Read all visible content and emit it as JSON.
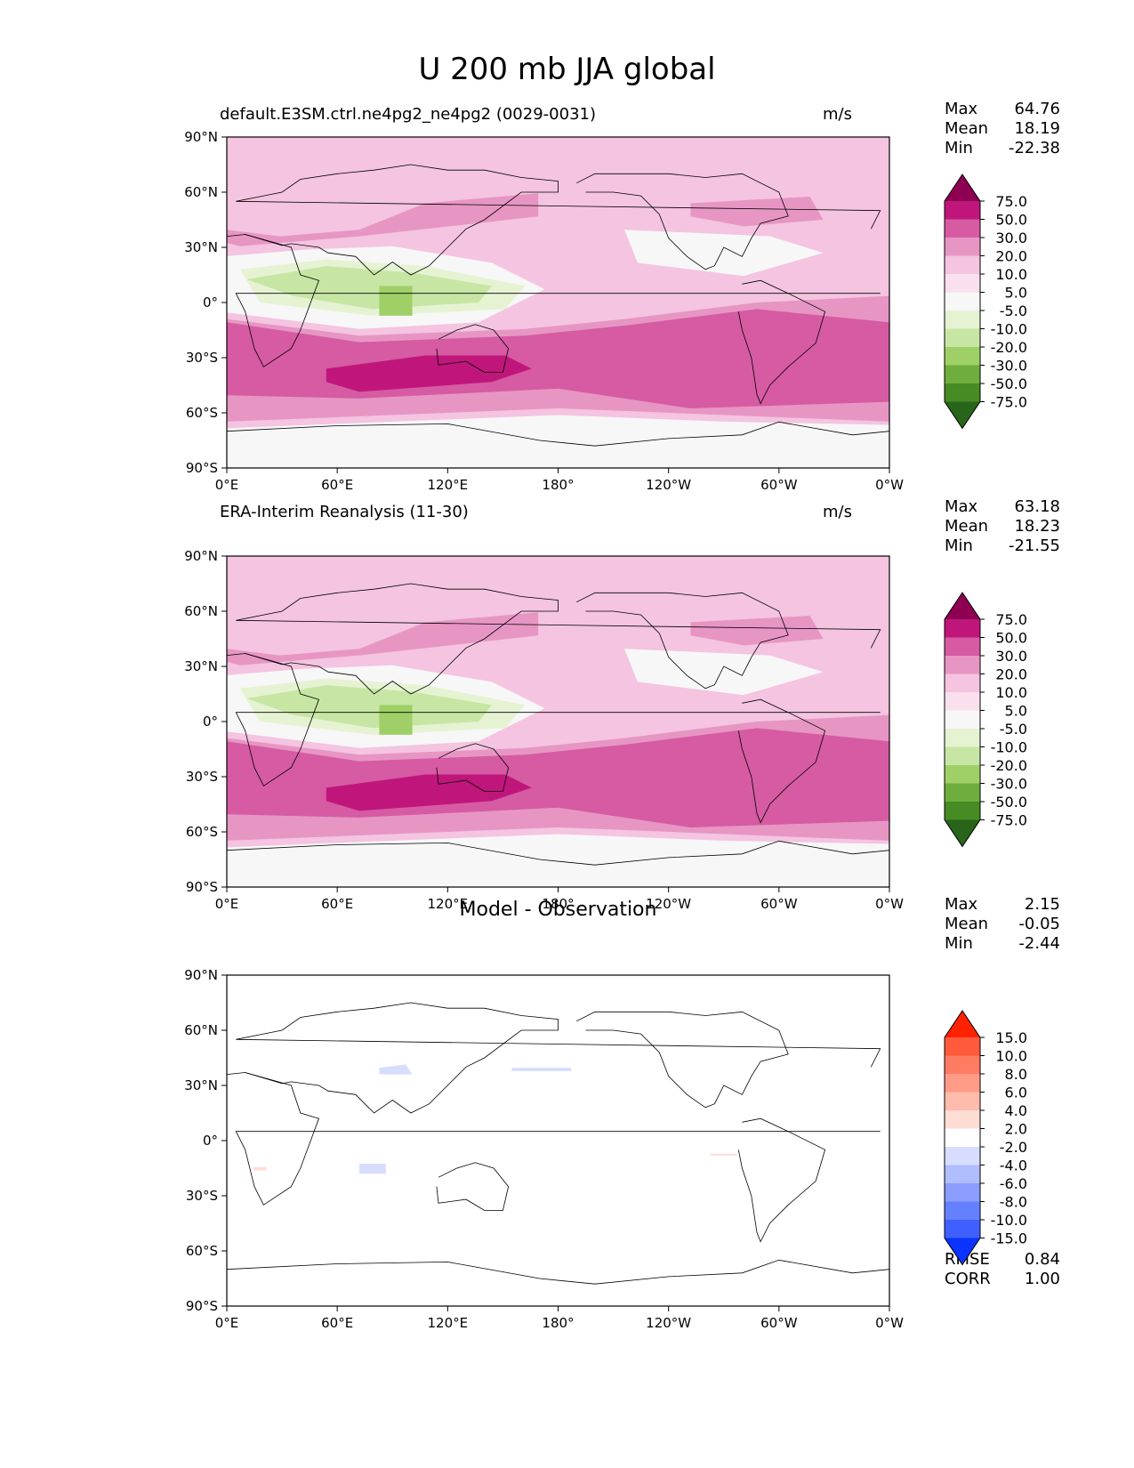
{
  "figure": {
    "title": "U 200 mb JJA global"
  },
  "axes": {
    "lat_ticks": [
      "90°N",
      "60°N",
      "30°N",
      "0°",
      "30°S",
      "60°S",
      "90°S"
    ],
    "lon_ticks": [
      "0°E",
      "60°E",
      "120°E",
      "180°",
      "120°W",
      "60°W",
      "0°W"
    ]
  },
  "panels": [
    {
      "id": "test",
      "title": "default.E3SM.ctrl.ne4pg2_ne4pg2 (0029-0031)",
      "units": "m/s",
      "stats": [
        {
          "label": "Max",
          "value": "64.76"
        },
        {
          "label": "Mean",
          "value": "18.19"
        },
        {
          "label": "Min",
          "value": "-22.38"
        }
      ]
    },
    {
      "id": "reference",
      "title": "ERA-Interim Reanalysis (11-30)",
      "units": "m/s",
      "stats": [
        {
          "label": "Max",
          "value": "63.18"
        },
        {
          "label": "Mean",
          "value": "18.23"
        },
        {
          "label": "Min",
          "value": "-21.55"
        }
      ]
    },
    {
      "id": "diff",
      "title": "Model - Observation",
      "units": "",
      "stats": [
        {
          "label": "Max",
          "value": "2.15"
        },
        {
          "label": "Mean",
          "value": "-0.05"
        },
        {
          "label": "Min",
          "value": "-2.44"
        }
      ],
      "extra_stats": [
        {
          "label": "RMSE",
          "value": "0.84"
        },
        {
          "label": "CORR",
          "value": "1.00"
        }
      ]
    }
  ],
  "colorbars": {
    "field": {
      "labels": [
        "75.0",
        "50.0",
        "30.0",
        "20.0",
        "10.0",
        "5.0",
        "-5.0",
        "-10.0",
        "-20.0",
        "-30.0",
        "-50.0",
        "-75.0"
      ],
      "colors": [
        "#8e0152",
        "#c0167c",
        "#d65ba2",
        "#e796c4",
        "#f4c4e1",
        "#fae0ef",
        "#f7f7f7",
        "#e5f3d3",
        "#c7e6a4",
        "#9fd068",
        "#6fae3d",
        "#468b24",
        "#286419"
      ]
    },
    "diff": {
      "labels": [
        "15.0",
        "10.0",
        "8.0",
        "6.0",
        "4.0",
        "2.0",
        "-2.0",
        "-4.0",
        "-6.0",
        "-8.0",
        "-10.0",
        "-15.0"
      ],
      "colors": [
        "#ff2200",
        "#ff5a3c",
        "#ff7b62",
        "#ff9c88",
        "#ffbbac",
        "#ffdcd4",
        "#ffffff",
        "#d6ddff",
        "#b0bdff",
        "#8b9dff",
        "#6580ff",
        "#3f60ff",
        "#0a33ff"
      ]
    }
  },
  "map_data": {
    "projection": "PlateCarree",
    "lon_range": [
      0,
      360
    ],
    "lat_range": [
      -90,
      90
    ],
    "features": [
      "coastlines",
      "filled contours of zonal wind"
    ]
  }
}
